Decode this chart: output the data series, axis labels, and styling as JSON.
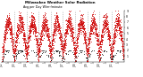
{
  "title": "Milwaukee Weather Solar Radiation",
  "subtitle": "Avg per Day W/m²/minute",
  "bg_color": "#ffffff",
  "plot_bg": "#ffffff",
  "dot_color": "#cc0000",
  "black_dot_color": "#000000",
  "grid_color": "#999999",
  "ylim": [
    0,
    9
  ],
  "ytick_vals": [
    1,
    2,
    3,
    4,
    5,
    6,
    7,
    8,
    9
  ],
  "num_years": 10,
  "dashed_grid_x": [
    365,
    730,
    1095,
    1461,
    1826,
    2191,
    2556,
    2922,
    3287
  ],
  "x_tick_positions": [
    0,
    183,
    365,
    548,
    730,
    913,
    1095,
    1278,
    1461,
    1644,
    1826,
    2009,
    2191,
    2374,
    2556,
    2739,
    2922,
    3105,
    3287,
    3470
  ],
  "x_tick_labels": [
    "J'02",
    "J",
    "J'03",
    "J",
    "J'04",
    "J",
    "J'05",
    "J",
    "J'06",
    "J",
    "J'07",
    "J",
    "J'08",
    "J",
    "J'09",
    "J",
    "J'10",
    "J",
    "J'11",
    "J"
  ]
}
